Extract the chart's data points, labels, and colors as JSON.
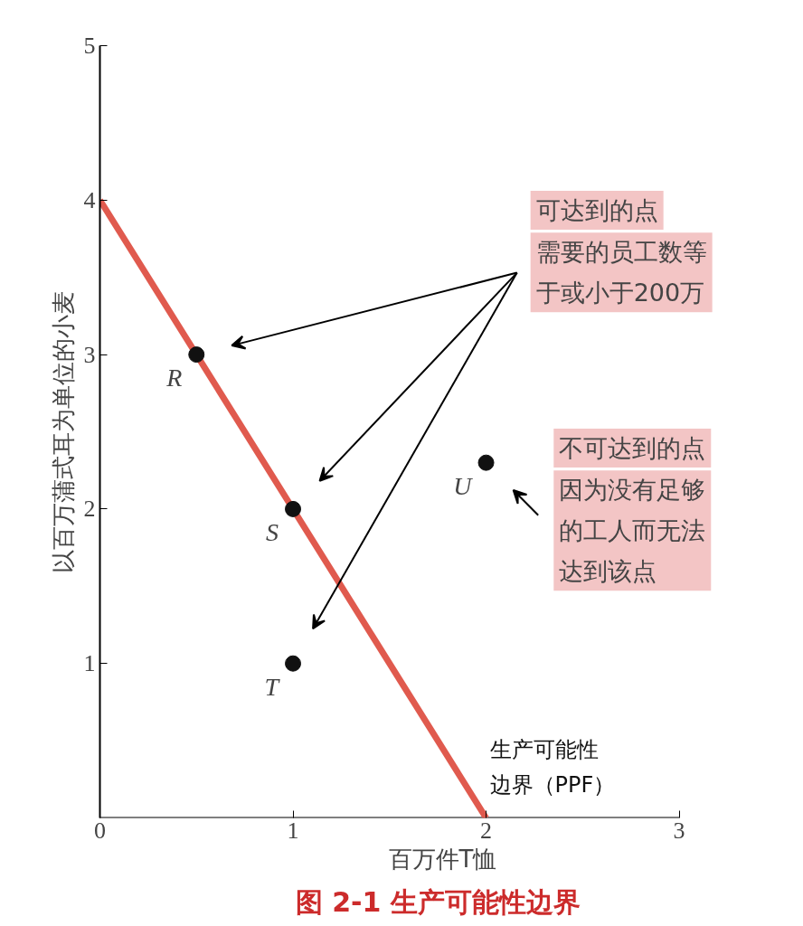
{
  "chart_data": {
    "type": "scatter",
    "title": "图 2-1  生产可能性边界",
    "xlabel": "百万件T恤",
    "ylabel": "以百万蒲式耳为单位的小麦",
    "xlim": [
      0,
      3
    ],
    "ylim": [
      0,
      5
    ],
    "xticks": [
      0,
      1,
      2,
      3
    ],
    "yticks": [
      1,
      2,
      3,
      4,
      5
    ],
    "grid": false,
    "series": [
      {
        "name": "生产可能性边界（PPF）",
        "type": "line",
        "color": "#e05a4e",
        "x": [
          0,
          2
        ],
        "values": [
          4,
          0
        ]
      },
      {
        "marker": "circle",
        "color": "#111111",
        "x": [
          0.5,
          1,
          1,
          2.0
        ],
        "values": [
          3,
          2,
          1,
          2.3
        ]
      }
    ],
    "annotations": [
      {
        "text": "R",
        "x": 0.5,
        "y": 3
      },
      {
        "text": "S",
        "x": 1,
        "y": 2
      },
      {
        "text": "T",
        "x": 1,
        "y": 1
      },
      {
        "text": "U",
        "x": 2.0,
        "y": 2.3
      },
      "可达到的点",
      "需要的员工数等于或小于200万",
      "不可达到的点",
      "因为没有足够的工人而无法达到该点"
    ]
  }
}
